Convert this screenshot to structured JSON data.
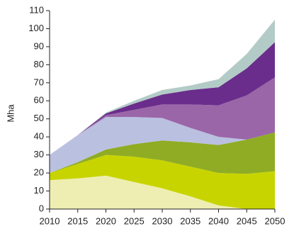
{
  "chart_data": {
    "type": "stacked_area",
    "y_label": "Mha",
    "x": [
      2010,
      2015,
      2020,
      2025,
      2030,
      2035,
      2040,
      2045,
      2050
    ],
    "series": [
      {
        "color": "#eeeeb2",
        "values": [
          16,
          17,
          18.5,
          15,
          11.5,
          7,
          2,
          0,
          0
        ]
      },
      {
        "color": "#c8d400",
        "values": [
          4,
          8,
          11.5,
          14,
          15.5,
          16.5,
          18,
          19.5,
          21
        ]
      },
      {
        "color": "#8fac24",
        "values": [
          0,
          1,
          3,
          7,
          11,
          13.5,
          15.5,
          19,
          21.5
        ]
      },
      {
        "color": "#bac0e0",
        "values": [
          10,
          15,
          18,
          15,
          12.5,
          8,
          4.5,
          0,
          0
        ]
      },
      {
        "color": "#9a66a8",
        "values": [
          0,
          0,
          1,
          4,
          7.5,
          13,
          17.5,
          24.5,
          30.5
        ]
      },
      {
        "color": "#6a2d8b",
        "values": [
          0,
          0,
          1,
          3.5,
          5.5,
          8,
          10,
          15,
          19.5
        ]
      },
      {
        "color": "#b3cbc7",
        "values": [
          0,
          0,
          0.5,
          1.5,
          2.5,
          2.5,
          4.5,
          8,
          12.5
        ]
      }
    ],
    "xlim": [
      2010,
      2050
    ],
    "xticks": [
      2010,
      2015,
      2020,
      2025,
      2030,
      2035,
      2040,
      2045,
      2050
    ],
    "ylim": [
      0,
      110
    ],
    "yticks": [
      0,
      10,
      20,
      30,
      40,
      50,
      60,
      70,
      80,
      90,
      100,
      110
    ]
  }
}
